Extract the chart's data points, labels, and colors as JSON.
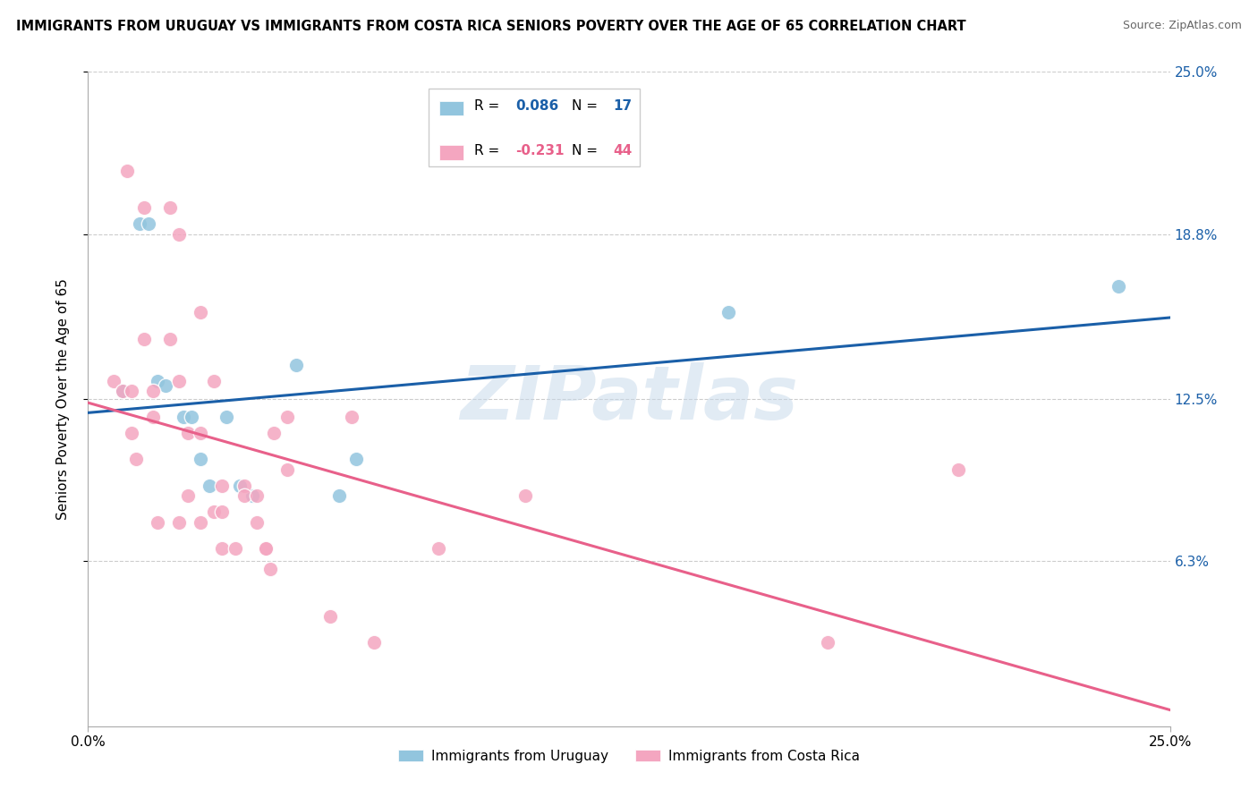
{
  "title": "IMMIGRANTS FROM URUGUAY VS IMMIGRANTS FROM COSTA RICA SENIORS POVERTY OVER THE AGE OF 65 CORRELATION CHART",
  "source": "Source: ZipAtlas.com",
  "ylabel": "Seniors Poverty Over the Age of 65",
  "xlim": [
    0.0,
    0.25
  ],
  "ylim": [
    0.0,
    0.25
  ],
  "ytick_values": [
    0.063,
    0.125,
    0.188,
    0.25
  ],
  "ytick_labels": [
    "6.3%",
    "12.5%",
    "18.8%",
    "25.0%"
  ],
  "xtick_positions": [
    0.0,
    0.25
  ],
  "xtick_labels": [
    "0.0%",
    "25.0%"
  ],
  "watermark": "ZIPatlas",
  "legend_r1_val": "0.086",
  "legend_n1_val": "17",
  "legend_r2_val": "-0.231",
  "legend_n2_val": "44",
  "color_uruguay": "#92c5de",
  "color_costa_rica": "#f4a6c0",
  "color_line_uruguay": "#1a5fa8",
  "color_line_costa_rica": "#e8608a",
  "uruguay_x": [
    0.008,
    0.012,
    0.014,
    0.016,
    0.018,
    0.022,
    0.024,
    0.026,
    0.028,
    0.032,
    0.035,
    0.038,
    0.048,
    0.058,
    0.062,
    0.148,
    0.238
  ],
  "uruguay_y": [
    0.128,
    0.192,
    0.192,
    0.132,
    0.13,
    0.118,
    0.118,
    0.102,
    0.092,
    0.118,
    0.092,
    0.088,
    0.138,
    0.088,
    0.102,
    0.158,
    0.168
  ],
  "costa_rica_x": [
    0.006,
    0.008,
    0.009,
    0.01,
    0.01,
    0.011,
    0.013,
    0.013,
    0.015,
    0.015,
    0.016,
    0.019,
    0.019,
    0.021,
    0.021,
    0.021,
    0.023,
    0.023,
    0.026,
    0.026,
    0.026,
    0.029,
    0.029,
    0.031,
    0.031,
    0.031,
    0.034,
    0.036,
    0.036,
    0.039,
    0.039,
    0.041,
    0.041,
    0.042,
    0.043,
    0.046,
    0.046,
    0.056,
    0.061,
    0.066,
    0.081,
    0.101,
    0.171,
    0.201
  ],
  "costa_rica_y": [
    0.132,
    0.128,
    0.212,
    0.128,
    0.112,
    0.102,
    0.148,
    0.198,
    0.128,
    0.118,
    0.078,
    0.198,
    0.148,
    0.188,
    0.132,
    0.078,
    0.112,
    0.088,
    0.158,
    0.112,
    0.078,
    0.132,
    0.082,
    0.092,
    0.082,
    0.068,
    0.068,
    0.092,
    0.088,
    0.088,
    0.078,
    0.068,
    0.068,
    0.06,
    0.112,
    0.118,
    0.098,
    0.042,
    0.118,
    0.032,
    0.068,
    0.088,
    0.032,
    0.098
  ]
}
